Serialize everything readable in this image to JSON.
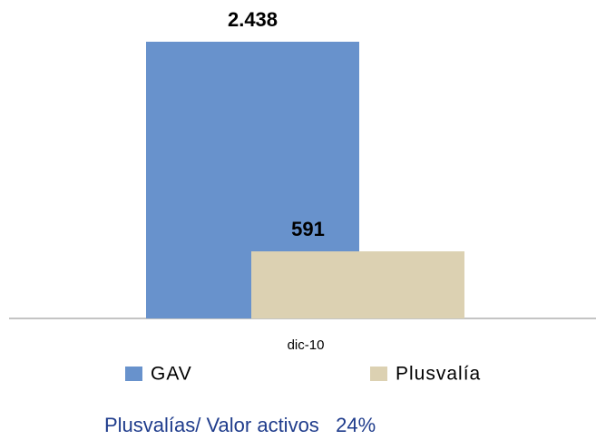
{
  "chart_data": {
    "type": "bar",
    "categories": [
      "dic-10"
    ],
    "series": [
      {
        "name": "GAV",
        "color": "#6892cc",
        "values": [
          2438
        ],
        "value_labels": [
          "2.438"
        ]
      },
      {
        "name": "Plusvalía",
        "color": "#dcd1b2",
        "values": [
          591
        ],
        "value_labels": [
          "591"
        ]
      }
    ],
    "annotation": "Plusvalías/ Valor activos   24%"
  }
}
